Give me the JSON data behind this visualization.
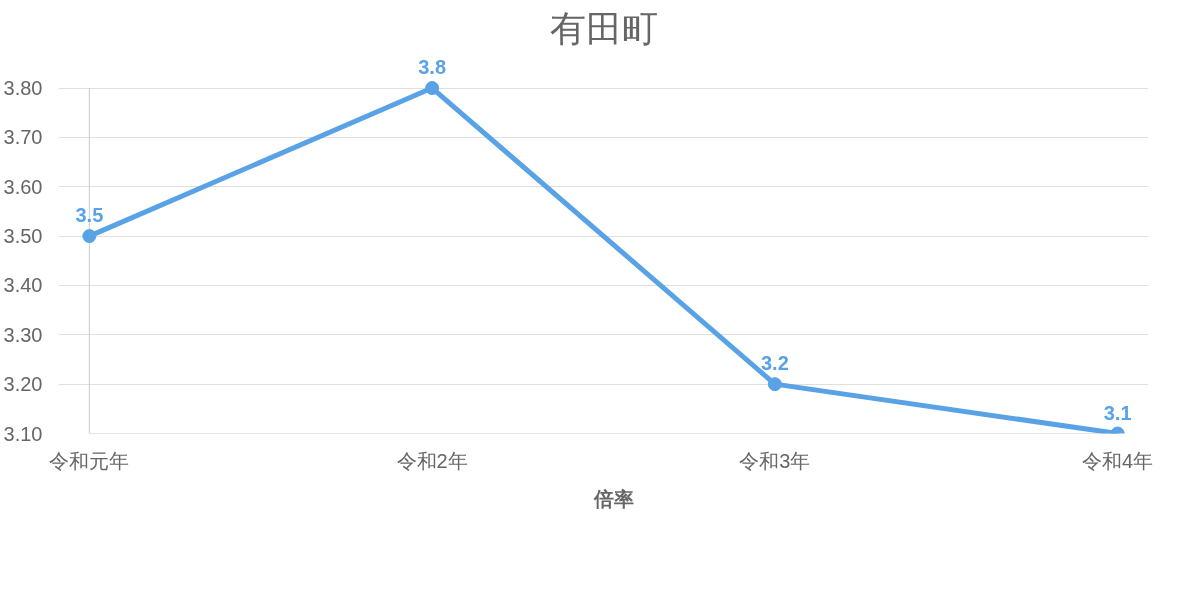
{
  "chart_data": {
    "type": "line",
    "title": "有田町",
    "categories": [
      "令和元年",
      "令和2年",
      "令和3年",
      "令和4年"
    ],
    "series": [
      {
        "name": "倍率",
        "color": "#5aa2e6",
        "values": [
          3.5,
          3.8,
          3.2,
          3.1
        ]
      }
    ],
    "ylim": [
      3.1,
      3.8
    ],
    "yticks": [
      {
        "value": 3.1,
        "label": "3.10"
      },
      {
        "value": 3.2,
        "label": "3.20"
      },
      {
        "value": 3.3,
        "label": "3.30"
      },
      {
        "value": 3.4,
        "label": "3.40"
      },
      {
        "value": 3.5,
        "label": "3.50"
      },
      {
        "value": 3.6,
        "label": "3.60"
      },
      {
        "value": 3.7,
        "label": "3.70"
      },
      {
        "value": 3.8,
        "label": "3.80"
      }
    ],
    "grid": "y",
    "legend": "bottom",
    "marker": "circle",
    "line_style": "solid",
    "data_labels": true
  }
}
